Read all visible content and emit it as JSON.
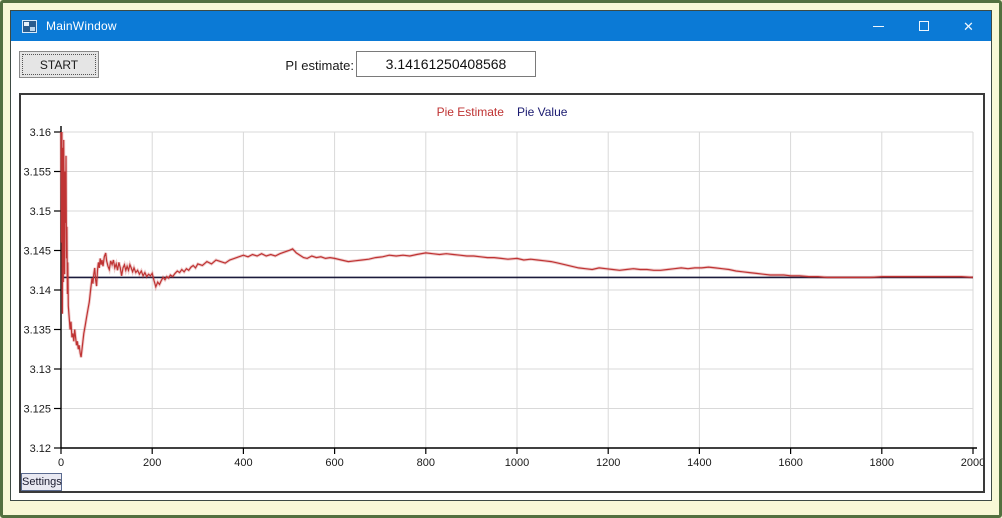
{
  "window": {
    "title": "MainWindow",
    "controls": {
      "minimize": "minimize",
      "maximize": "maximize",
      "close": "✕"
    },
    "titlebar_color": "#0b7ad6"
  },
  "toolbar": {
    "start_label": "START",
    "pi_label": "PI estimate:",
    "pi_value": "3.14161250408568"
  },
  "chart_panel": {
    "settings_label": "Settings"
  },
  "chart_data": {
    "type": "line",
    "title": "",
    "xlabel": "",
    "ylabel": "",
    "xlim": [
      0,
      2000
    ],
    "xtick_step": 200,
    "ylim": [
      3.12,
      3.16
    ],
    "ytick_step": 0.005,
    "grid": true,
    "legend_position": "top-center",
    "colors": {
      "grid": "#d9d9d9",
      "axis": "#000000",
      "tick_label": "#1a1a1a"
    },
    "series": [
      {
        "name": "Pie Estimate",
        "color": "#bf3333",
        "points": [
          [
            0,
            3.16
          ],
          [
            1,
            3.146
          ],
          [
            2,
            3.16
          ],
          [
            3,
            3.137
          ],
          [
            4,
            3.158
          ],
          [
            5,
            3.141
          ],
          [
            6,
            3.159
          ],
          [
            7,
            3.15
          ],
          [
            8,
            3.142
          ],
          [
            9,
            3.155
          ],
          [
            10,
            3.1485
          ],
          [
            11,
            3.157
          ],
          [
            12,
            3.144
          ],
          [
            13,
            3.148
          ],
          [
            14,
            3.1395
          ],
          [
            15,
            3.1435
          ],
          [
            16,
            3.138
          ],
          [
            18,
            3.1365
          ],
          [
            20,
            3.135
          ],
          [
            22,
            3.136
          ],
          [
            24,
            3.134
          ],
          [
            26,
            3.1345
          ],
          [
            28,
            3.1335
          ],
          [
            30,
            3.135
          ],
          [
            32,
            3.134
          ],
          [
            34,
            3.133
          ],
          [
            36,
            3.1335
          ],
          [
            38,
            3.1325
          ],
          [
            40,
            3.133
          ],
          [
            42,
            3.132
          ],
          [
            44,
            3.1315
          ],
          [
            46,
            3.1325
          ],
          [
            48,
            3.1335
          ],
          [
            50,
            3.1345
          ],
          [
            53,
            3.1355
          ],
          [
            56,
            3.1365
          ],
          [
            59,
            3.1375
          ],
          [
            62,
            3.1385
          ],
          [
            65,
            3.14
          ],
          [
            68,
            3.1415
          ],
          [
            70,
            3.1408
          ],
          [
            72,
            3.142
          ],
          [
            74,
            3.1428
          ],
          [
            76,
            3.1412
          ],
          [
            78,
            3.1405
          ],
          [
            80,
            3.1425
          ],
          [
            82,
            3.1435
          ],
          [
            84,
            3.1428
          ],
          [
            86,
            3.144
          ],
          [
            88,
            3.1432
          ],
          [
            90,
            3.1438
          ],
          [
            92,
            3.143
          ],
          [
            95,
            3.1442
          ],
          [
            98,
            3.1447
          ],
          [
            100,
            3.1437
          ],
          [
            103,
            3.143
          ],
          [
            106,
            3.1426
          ],
          [
            109,
            3.1437
          ],
          [
            112,
            3.1432
          ],
          [
            115,
            3.1438
          ],
          [
            118,
            3.1428
          ],
          [
            121,
            3.1433
          ],
          [
            124,
            3.1425
          ],
          [
            127,
            3.1435
          ],
          [
            130,
            3.1428
          ],
          [
            133,
            3.1418
          ],
          [
            136,
            3.1428
          ],
          [
            139,
            3.1432
          ],
          [
            142,
            3.1425
          ],
          [
            145,
            3.143
          ],
          [
            148,
            3.1425
          ],
          [
            151,
            3.1432
          ],
          [
            154,
            3.1428
          ],
          [
            157,
            3.1423
          ],
          [
            160,
            3.1428
          ],
          [
            164,
            3.1422
          ],
          [
            168,
            3.1425
          ],
          [
            172,
            3.142
          ],
          [
            176,
            3.1424
          ],
          [
            180,
            3.1418
          ],
          [
            184,
            3.1422
          ],
          [
            188,
            3.1417
          ],
          [
            192,
            3.142
          ],
          [
            196,
            3.1418
          ],
          [
            200,
            3.1421
          ],
          [
            204,
            3.1412
          ],
          [
            208,
            3.1404
          ],
          [
            212,
            3.141
          ],
          [
            216,
            3.1407
          ],
          [
            220,
            3.1412
          ],
          [
            224,
            3.1416
          ],
          [
            228,
            3.1413
          ],
          [
            232,
            3.1417
          ],
          [
            236,
            3.1415
          ],
          [
            240,
            3.1419
          ],
          [
            245,
            3.1417
          ],
          [
            250,
            3.1421
          ],
          [
            255,
            3.1424
          ],
          [
            260,
            3.1422
          ],
          [
            265,
            3.1426
          ],
          [
            270,
            3.1423
          ],
          [
            275,
            3.1427
          ],
          [
            280,
            3.1425
          ],
          [
            285,
            3.1429
          ],
          [
            290,
            3.1431
          ],
          [
            295,
            3.1428
          ],
          [
            300,
            3.1433
          ],
          [
            310,
            3.1431
          ],
          [
            320,
            3.1436
          ],
          [
            330,
            3.1433
          ],
          [
            340,
            3.1438
          ],
          [
            350,
            3.1436
          ],
          [
            360,
            3.1434
          ],
          [
            370,
            3.1438
          ],
          [
            380,
            3.144
          ],
          [
            390,
            3.1442
          ],
          [
            400,
            3.1444
          ],
          [
            410,
            3.1442
          ],
          [
            420,
            3.1445
          ],
          [
            430,
            3.1443
          ],
          [
            440,
            3.1446
          ],
          [
            450,
            3.1443
          ],
          [
            460,
            3.1445
          ],
          [
            470,
            3.1443
          ],
          [
            480,
            3.1446
          ],
          [
            490,
            3.1448
          ],
          [
            500,
            3.145
          ],
          [
            508,
            3.1452
          ],
          [
            516,
            3.1447
          ],
          [
            524,
            3.1444
          ],
          [
            532,
            3.1441
          ],
          [
            540,
            3.144
          ],
          [
            550,
            3.1443
          ],
          [
            560,
            3.1441
          ],
          [
            570,
            3.1442
          ],
          [
            580,
            3.144
          ],
          [
            590,
            3.1441
          ],
          [
            600,
            3.144
          ],
          [
            615,
            3.1438
          ],
          [
            630,
            3.1436
          ],
          [
            645,
            3.1437
          ],
          [
            660,
            3.1438
          ],
          [
            675,
            3.1439
          ],
          [
            690,
            3.1441
          ],
          [
            705,
            3.1442
          ],
          [
            720,
            3.1444
          ],
          [
            735,
            3.1443
          ],
          [
            750,
            3.1444
          ],
          [
            765,
            3.1443
          ],
          [
            780,
            3.1445
          ],
          [
            800,
            3.1447
          ],
          [
            815,
            3.1446
          ],
          [
            830,
            3.1445
          ],
          [
            845,
            3.1446
          ],
          [
            860,
            3.1445
          ],
          [
            875,
            3.1444
          ],
          [
            890,
            3.1443
          ],
          [
            905,
            3.1443
          ],
          [
            920,
            3.1442
          ],
          [
            935,
            3.1441
          ],
          [
            950,
            3.1441
          ],
          [
            965,
            3.144
          ],
          [
            980,
            3.1439
          ],
          [
            1000,
            3.144
          ],
          [
            1015,
            3.1438
          ],
          [
            1030,
            3.1439
          ],
          [
            1045,
            3.1438
          ],
          [
            1060,
            3.1437
          ],
          [
            1075,
            3.1436
          ],
          [
            1090,
            3.1434
          ],
          [
            1105,
            3.1432
          ],
          [
            1120,
            3.143
          ],
          [
            1135,
            3.1428
          ],
          [
            1150,
            3.1427
          ],
          [
            1165,
            3.1426
          ],
          [
            1180,
            3.1428
          ],
          [
            1195,
            3.1427
          ],
          [
            1210,
            3.1426
          ],
          [
            1225,
            3.1425
          ],
          [
            1240,
            3.1426
          ],
          [
            1255,
            3.1427
          ],
          [
            1270,
            3.1426
          ],
          [
            1285,
            3.1426
          ],
          [
            1300,
            3.1425
          ],
          [
            1315,
            3.1425
          ],
          [
            1330,
            3.1426
          ],
          [
            1345,
            3.1427
          ],
          [
            1360,
            3.1428
          ],
          [
            1375,
            3.1427
          ],
          [
            1390,
            3.1428
          ],
          [
            1405,
            3.1428
          ],
          [
            1420,
            3.1429
          ],
          [
            1435,
            3.1428
          ],
          [
            1450,
            3.1427
          ],
          [
            1465,
            3.1426
          ],
          [
            1480,
            3.1424
          ],
          [
            1495,
            3.1423
          ],
          [
            1510,
            3.1422
          ],
          [
            1525,
            3.1421
          ],
          [
            1540,
            3.142
          ],
          [
            1555,
            3.1419
          ],
          [
            1570,
            3.1419
          ],
          [
            1585,
            3.1419
          ],
          [
            1600,
            3.1418
          ],
          [
            1620,
            3.1418
          ],
          [
            1640,
            3.1417
          ],
          [
            1660,
            3.1417
          ],
          [
            1680,
            3.1416
          ],
          [
            1700,
            3.1416
          ],
          [
            1725,
            3.1416
          ],
          [
            1750,
            3.1416
          ],
          [
            1775,
            3.1416
          ],
          [
            1800,
            3.1417
          ],
          [
            1825,
            3.1417
          ],
          [
            1850,
            3.1417
          ],
          [
            1875,
            3.1417
          ],
          [
            1900,
            3.1417
          ],
          [
            1925,
            3.1417
          ],
          [
            1950,
            3.1417
          ],
          [
            1975,
            3.1417
          ],
          [
            2000,
            3.1416
          ]
        ]
      },
      {
        "name": "Pie Value",
        "color": "#1b1b3c",
        "legend_text_color": "#1a1a70",
        "constant": 3.14159265
      }
    ]
  }
}
